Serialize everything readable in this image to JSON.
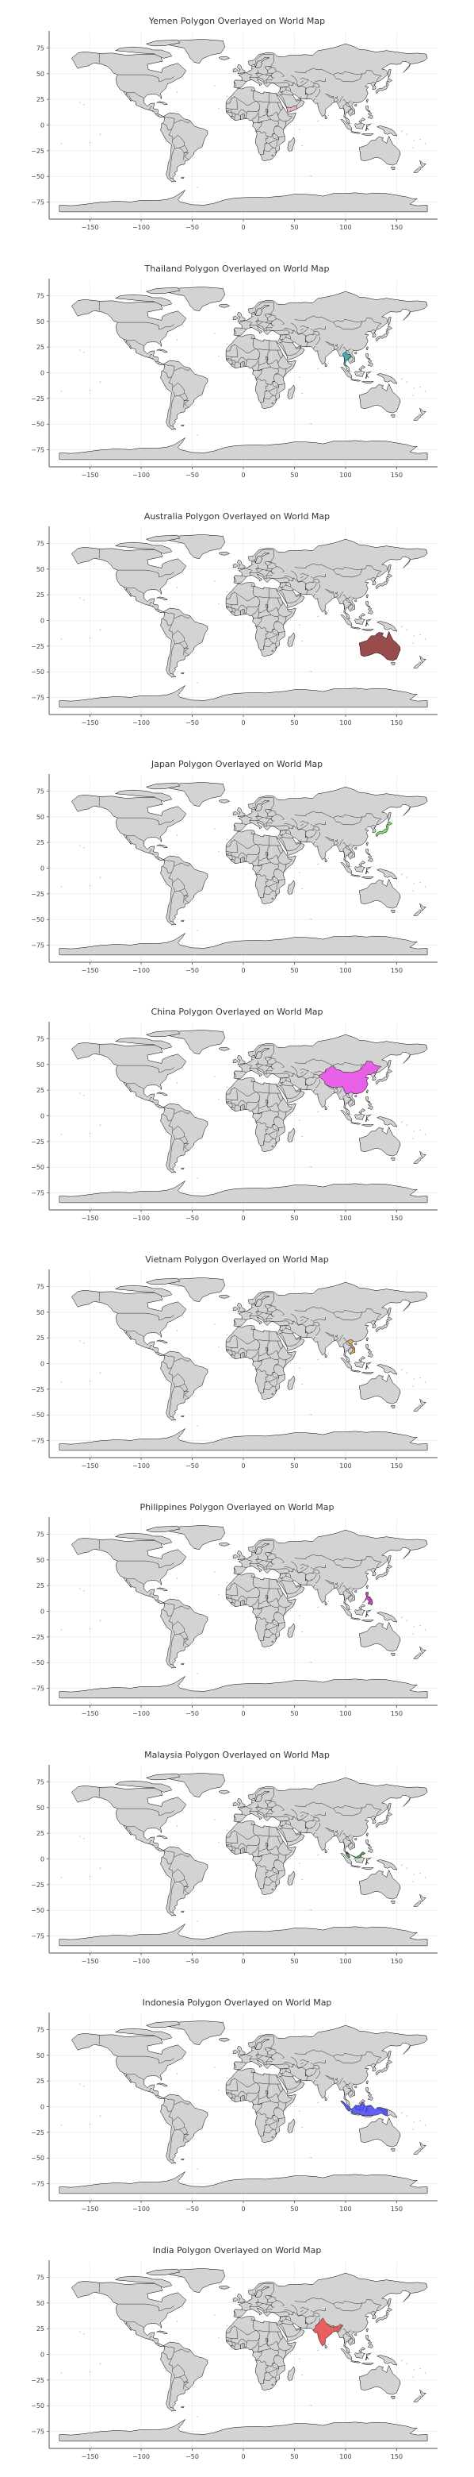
{
  "figure": {
    "x_ticks": [
      "−150",
      "−100",
      "−50",
      "0",
      "50",
      "100",
      "150"
    ],
    "y_ticks": [
      "75",
      "50",
      "25",
      "0",
      "−25",
      "−50",
      "−75"
    ],
    "land_color": "#d3d3d3",
    "land_stroke": "#000000",
    "grid": true
  },
  "maps": [
    {
      "title": "Yemen Polygon Overlayed on World Map",
      "region": "Yemen",
      "color": "#f4a9b5",
      "polygon": [
        [
          42.6,
          16.4
        ],
        [
          43.3,
          12.6
        ],
        [
          45.0,
          12.7
        ],
        [
          48.7,
          14.0
        ],
        [
          52.2,
          15.6
        ],
        [
          52.0,
          19.0
        ],
        [
          49.1,
          18.6
        ],
        [
          47.0,
          17.1
        ],
        [
          44.0,
          17.4
        ],
        [
          42.8,
          17.3
        ]
      ]
    },
    {
      "title": "Thailand Polygon Overlayed on World Map",
      "region": "Thailand",
      "color": "#1fa3a3",
      "polygon": [
        [
          97.4,
          18.4
        ],
        [
          100.1,
          20.4
        ],
        [
          101.2,
          19.5
        ],
        [
          102.1,
          18.1
        ],
        [
          104.7,
          17.4
        ],
        [
          105.6,
          15.6
        ],
        [
          103.0,
          14.2
        ],
        [
          102.3,
          12.2
        ],
        [
          100.8,
          12.6
        ],
        [
          100.0,
          10.0
        ],
        [
          99.2,
          8.0
        ],
        [
          101.0,
          6.9
        ],
        [
          100.3,
          6.0
        ],
        [
          98.3,
          7.8
        ],
        [
          98.6,
          10.0
        ],
        [
          99.2,
          13.3
        ],
        [
          98.4,
          15.0
        ],
        [
          97.6,
          16.6
        ]
      ]
    },
    {
      "title": "Australia Polygon Overlayed on World Map",
      "region": "Australia",
      "color": "#8b2a2a",
      "polygon": [
        [
          113.3,
          -22.0
        ],
        [
          114.2,
          -26.3
        ],
        [
          115.0,
          -33.7
        ],
        [
          117.9,
          -35.1
        ],
        [
          123.0,
          -33.9
        ],
        [
          129.0,
          -31.6
        ],
        [
          131.3,
          -31.5
        ],
        [
          134.3,
          -32.6
        ],
        [
          137.8,
          -35.1
        ],
        [
          140.6,
          -38.0
        ],
        [
          146.4,
          -39.1
        ],
        [
          150.0,
          -37.4
        ],
        [
          153.6,
          -28.1
        ],
        [
          152.9,
          -25.3
        ],
        [
          149.3,
          -21.3
        ],
        [
          146.4,
          -19.0
        ],
        [
          143.5,
          -13.4
        ],
        [
          142.5,
          -10.7
        ],
        [
          141.6,
          -12.9
        ],
        [
          140.2,
          -17.7
        ],
        [
          135.9,
          -15.0
        ],
        [
          136.9,
          -12.3
        ],
        [
          132.6,
          -11.6
        ],
        [
          130.0,
          -13.5
        ],
        [
          129.4,
          -14.9
        ],
        [
          125.0,
          -15.0
        ],
        [
          122.2,
          -18.2
        ],
        [
          121.3,
          -19.4
        ],
        [
          117.4,
          -20.7
        ]
      ]
    },
    {
      "title": "Japan Polygon Overlayed on World Map",
      "region": "Japan",
      "color": "#66ee44",
      "polygon": [
        [
          130.0,
          31.0
        ],
        [
          131.4,
          31.4
        ],
        [
          132.0,
          33.1
        ],
        [
          134.6,
          33.8
        ],
        [
          136.0,
          33.4
        ],
        [
          138.2,
          34.6
        ],
        [
          140.0,
          35.1
        ],
        [
          140.9,
          36.9
        ],
        [
          141.9,
          39.2
        ],
        [
          141.4,
          41.4
        ],
        [
          141.1,
          42.5
        ],
        [
          143.2,
          41.9
        ],
        [
          145.5,
          43.3
        ],
        [
          144.6,
          44.1
        ],
        [
          141.9,
          45.5
        ],
        [
          141.4,
          43.4
        ],
        [
          139.9,
          41.6
        ],
        [
          139.9,
          40.6
        ],
        [
          140.3,
          38.2
        ],
        [
          138.9,
          37.8
        ],
        [
          137.2,
          36.8
        ],
        [
          135.8,
          35.5
        ],
        [
          132.6,
          35.4
        ],
        [
          130.9,
          34.2
        ],
        [
          129.8,
          33.2
        ]
      ]
    },
    {
      "title": "China Polygon Overlayed on World Map",
      "region": "China",
      "color": "#ee44ee",
      "polygon": [
        [
          73.7,
          39.4
        ],
        [
          74.9,
          37.2
        ],
        [
          78.9,
          34.3
        ],
        [
          80.2,
          30.4
        ],
        [
          86.0,
          27.9
        ],
        [
          91.7,
          27.8
        ],
        [
          97.5,
          28.3
        ],
        [
          98.6,
          25.0
        ],
        [
          100.1,
          21.6
        ],
        [
          101.8,
          21.2
        ],
        [
          105.4,
          23.0
        ],
        [
          108.0,
          21.6
        ],
        [
          111.8,
          21.6
        ],
        [
          116.4,
          23.0
        ],
        [
          119.5,
          25.8
        ],
        [
          121.9,
          30.9
        ],
        [
          120.4,
          34.4
        ],
        [
          122.5,
          37.0
        ],
        [
          119.1,
          37.2
        ],
        [
          121.6,
          40.0
        ],
        [
          124.3,
          40.0
        ],
        [
          126.9,
          41.8
        ],
        [
          130.6,
          42.4
        ],
        [
          131.3,
          44.9
        ],
        [
          134.7,
          48.0
        ],
        [
          130.6,
          48.8
        ],
        [
          127.4,
          50.0
        ],
        [
          125.9,
          52.8
        ],
        [
          120.7,
          53.3
        ],
        [
          119.1,
          50.0
        ],
        [
          117.9,
          49.5
        ],
        [
          114.5,
          45.0
        ],
        [
          111.9,
          43.7
        ],
        [
          106.1,
          42.1
        ],
        [
          97.0,
          42.8
        ],
        [
          95.3,
          44.2
        ],
        [
          90.9,
          45.3
        ],
        [
          87.0,
          49.0
        ],
        [
          84.1,
          46.7
        ],
        [
          80.9,
          45.2
        ],
        [
          80.4,
          42.9
        ],
        [
          76.0,
          40.3
        ]
      ]
    },
    {
      "title": "Vietnam Polygon Overlayed on World Map",
      "region": "Vietnam",
      "color": "#e8a23c",
      "polygon": [
        [
          102.2,
          22.4
        ],
        [
          105.3,
          23.4
        ],
        [
          106.7,
          22.8
        ],
        [
          107.4,
          21.3
        ],
        [
          106.1,
          19.4
        ],
        [
          106.6,
          17.5
        ],
        [
          108.9,
          15.3
        ],
        [
          109.3,
          11.0
        ],
        [
          106.2,
          10.0
        ],
        [
          104.8,
          8.6
        ],
        [
          104.9,
          10.5
        ],
        [
          106.4,
          11.7
        ],
        [
          107.5,
          14.2
        ],
        [
          107.4,
          16.0
        ],
        [
          105.1,
          18.7
        ],
        [
          103.9,
          19.3
        ],
        [
          102.7,
          20.5
        ],
        [
          102.1,
          21.6
        ]
      ]
    },
    {
      "title": "Philippines Polygon Overlayed on World Map",
      "region": "Philippines",
      "color": "#b12ab1",
      "polygon": [
        [
          120.0,
          18.5
        ],
        [
          122.3,
          18.4
        ],
        [
          122.0,
          16.4
        ],
        [
          121.7,
          14.3
        ],
        [
          124.1,
          13.8
        ],
        [
          126.0,
          11.0
        ],
        [
          126.4,
          7.4
        ],
        [
          125.4,
          5.9
        ],
        [
          123.9,
          7.0
        ],
        [
          122.0,
          7.2
        ],
        [
          122.3,
          8.9
        ],
        [
          123.1,
          9.8
        ],
        [
          122.0,
          10.9
        ],
        [
          120.4,
          12.1
        ],
        [
          119.5,
          10.3
        ],
        [
          117.2,
          8.4
        ],
        [
          118.7,
          10.2
        ],
        [
          120.0,
          12.8
        ],
        [
          120.6,
          14.5
        ],
        [
          119.9,
          16.2
        ]
      ]
    },
    {
      "title": "Malaysia Polygon Overlayed on World Map",
      "region": "Malaysia",
      "color": "#2a9a2a",
      "polygon": [
        [
          100.1,
          6.5
        ],
        [
          101.0,
          6.9
        ],
        [
          102.4,
          6.1
        ],
        [
          103.4,
          4.9
        ],
        [
          103.4,
          3.4
        ],
        [
          104.3,
          1.6
        ],
        [
          103.5,
          1.2
        ],
        [
          101.4,
          2.8
        ],
        [
          100.6,
          4.0
        ],
        [
          100.1,
          6.0
        ],
        [
          109.7,
          1.9
        ],
        [
          110.5,
          1.7
        ],
        [
          111.9,
          2.9
        ],
        [
          113.0,
          3.2
        ],
        [
          115.5,
          5.5
        ],
        [
          116.7,
          6.9
        ],
        [
          119.2,
          5.4
        ],
        [
          117.8,
          4.3
        ],
        [
          115.9,
          4.3
        ],
        [
          114.6,
          1.4
        ],
        [
          113.8,
          1.2
        ],
        [
          111.2,
          1.0
        ],
        [
          109.6,
          1.4
        ]
      ]
    },
    {
      "title": "Indonesia Polygon Overlayed on World Map",
      "region": "Indonesia",
      "color": "#3a3af0",
      "polygon": [
        [
          95.3,
          5.5
        ],
        [
          97.5,
          5.2
        ],
        [
          100.6,
          2.1
        ],
        [
          103.8,
          0.1
        ],
        [
          106.1,
          -3.1
        ],
        [
          106.5,
          -6.0
        ],
        [
          108.6,
          -6.8
        ],
        [
          111.7,
          -6.9
        ],
        [
          114.5,
          -7.8
        ],
        [
          116.0,
          -8.4
        ],
        [
          119.9,
          -8.8
        ],
        [
          123.0,
          -8.6
        ],
        [
          125.1,
          -8.6
        ],
        [
          127.3,
          -8.4
        ],
        [
          131.0,
          -8.0
        ],
        [
          134.7,
          -6.5
        ],
        [
          138.1,
          -8.1
        ],
        [
          140.1,
          -8.9
        ],
        [
          141.0,
          -9.1
        ],
        [
          141.0,
          -2.6
        ],
        [
          137.4,
          -1.7
        ],
        [
          134.1,
          -0.8
        ],
        [
          131.2,
          -0.8
        ],
        [
          129.0,
          -2.8
        ],
        [
          125.2,
          1.4
        ],
        [
          121.5,
          1.0
        ],
        [
          119.8,
          0.2
        ],
        [
          118.8,
          1.3
        ],
        [
          117.9,
          4.1
        ],
        [
          115.9,
          4.3
        ],
        [
          114.6,
          1.4
        ],
        [
          111.2,
          1.0
        ],
        [
          109.6,
          1.4
        ],
        [
          109.0,
          0.4
        ],
        [
          105.8,
          -2.4
        ],
        [
          104.1,
          -4.1
        ],
        [
          102.6,
          -4.2
        ],
        [
          100.9,
          -2.1
        ],
        [
          98.6,
          1.8
        ],
        [
          96.4,
          3.9
        ]
      ]
    },
    {
      "title": "India Polygon Overlayed on World Map",
      "region": "India",
      "color": "#ee4444",
      "polygon": [
        [
          68.2,
          23.7
        ],
        [
          70.5,
          25.7
        ],
        [
          70.6,
          28.0
        ],
        [
          73.4,
          29.9
        ],
        [
          74.4,
          31.7
        ],
        [
          75.3,
          32.3
        ],
        [
          77.8,
          35.5
        ],
        [
          79.5,
          32.5
        ],
        [
          81.1,
          30.2
        ],
        [
          84.7,
          27.2
        ],
        [
          88.1,
          26.4
        ],
        [
          88.3,
          27.9
        ],
        [
          89.7,
          26.7
        ],
        [
          92.1,
          26.8
        ],
        [
          94.6,
          29.3
        ],
        [
          97.3,
          28.3
        ],
        [
          96.1,
          27.3
        ],
        [
          95.0,
          25.2
        ],
        [
          93.3,
          23.0
        ],
        [
          92.1,
          21.2
        ],
        [
          90.4,
          22.6
        ],
        [
          87.0,
          21.5
        ],
        [
          86.5,
          20.2
        ],
        [
          84.0,
          18.3
        ],
        [
          82.2,
          16.6
        ],
        [
          80.0,
          15.1
        ],
        [
          80.3,
          13.0
        ],
        [
          79.9,
          10.4
        ],
        [
          77.5,
          8.0
        ],
        [
          76.1,
          10.3
        ],
        [
          74.9,
          12.7
        ],
        [
          73.5,
          16.0
        ],
        [
          72.8,
          19.2
        ],
        [
          72.8,
          21.4
        ],
        [
          70.5,
          20.9
        ],
        [
          69.2,
          22.1
        ]
      ]
    }
  ]
}
